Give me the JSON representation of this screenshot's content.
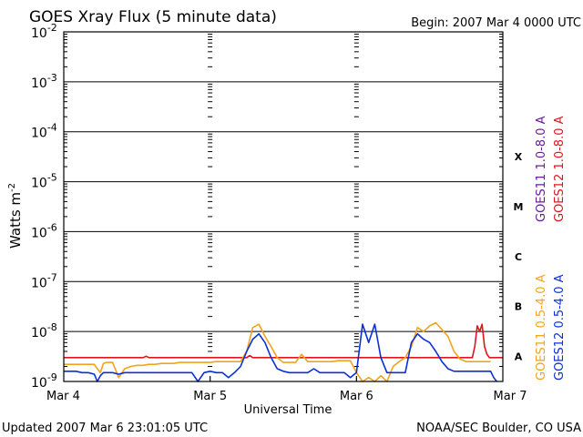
{
  "chart_data": {
    "type": "line",
    "title": "GOES Xray Flux (5 minute data)",
    "begin_label": "Begin:  2007 Mar 4 0000 UTC",
    "updated_label": "Updated 2007 Mar  6 23:01:05 UTC",
    "credit": "NOAA/SEC Boulder, CO USA",
    "xlabel": "Universal Time",
    "ylabel": "Watts m",
    "ylabel_superscript": "-2",
    "y_scale": "log",
    "ylim": [
      1e-09,
      0.01
    ],
    "xlim": [
      0,
      72
    ],
    "x_unit": "hours since 2007 Mar 4 0000 UTC",
    "grid": true,
    "x_ticks": [
      {
        "x": 0,
        "label": "Mar 4"
      },
      {
        "x": 24,
        "label": "Mar 5"
      },
      {
        "x": 48,
        "label": "Mar 6"
      },
      {
        "x": 72,
        "label": "Mar 7"
      }
    ],
    "y_ticks": [
      {
        "exp": -2,
        "base": "10",
        "sup": "-2"
      },
      {
        "exp": -3,
        "base": "10",
        "sup": "-3"
      },
      {
        "exp": -4,
        "base": "10",
        "sup": "-4"
      },
      {
        "exp": -5,
        "base": "10",
        "sup": "-5"
      },
      {
        "exp": -6,
        "base": "10",
        "sup": "-6"
      },
      {
        "exp": -7,
        "base": "10",
        "sup": "-7"
      },
      {
        "exp": -8,
        "base": "10",
        "sup": "-8"
      },
      {
        "exp": -9,
        "base": "10",
        "sup": "-9"
      }
    ],
    "flare_classes": [
      {
        "label": "X",
        "exp": -4.5
      },
      {
        "label": "M",
        "exp": -5.5
      },
      {
        "label": "C",
        "exp": -6.5
      },
      {
        "label": "B",
        "exp": -7.5
      },
      {
        "label": "A",
        "exp": -8.5
      }
    ],
    "legend": {
      "placement": "right",
      "long": [
        {
          "name": "GOES11 1.0-8.0 A",
          "color": "#6a1b9a"
        },
        {
          "name": "GOES12 1.0-8.0 A",
          "color": "#e0141e"
        }
      ],
      "short": [
        {
          "name": "GOES11 0.5-4.0 A",
          "color": "#f2a31b"
        },
        {
          "name": "GOES12 0.5-4.0 A",
          "color": "#0b2fd8"
        }
      ]
    },
    "series": [
      {
        "name": "GOES12 1.0-8.0 A",
        "color": "#e0141e",
        "x": [
          0,
          13,
          13.5,
          14,
          30,
          30.5,
          31,
          67,
          67.4,
          67.8,
          68.2,
          68.6,
          69,
          69.4,
          69.8,
          72
        ],
        "y": [
          3e-09,
          3e-09,
          3.2e-09,
          3e-09,
          3e-09,
          3.3e-09,
          3e-09,
          3e-09,
          5e-09,
          1.3e-08,
          1e-08,
          1.4e-08,
          5e-09,
          3.5e-09,
          3e-09,
          3e-09
        ]
      },
      {
        "name": "GOES11 0.5-4.0 A",
        "color": "#f2a31b",
        "x": [
          0,
          5,
          5.5,
          6,
          6.5,
          7,
          8,
          9,
          10,
          11,
          12,
          13,
          14,
          15,
          16,
          17,
          18,
          19,
          20,
          21,
          22,
          23,
          24,
          25,
          26,
          27,
          28,
          29,
          30,
          31,
          32,
          33,
          34,
          35,
          36,
          37,
          38,
          39,
          40,
          41,
          42,
          43,
          44,
          45,
          46,
          47,
          48,
          49,
          50,
          51,
          52,
          53,
          54,
          55,
          56,
          57,
          58,
          59,
          60,
          61,
          62,
          63,
          64,
          65,
          66,
          67,
          68,
          69,
          70
        ],
        "y": [
          2.2e-09,
          2.2e-09,
          1.8e-09,
          1.5e-09,
          2.3e-09,
          2.4e-09,
          2.4e-09,
          1.2e-09,
          1.8e-09,
          2e-09,
          2.1e-09,
          2.1e-09,
          2.2e-09,
          2.2e-09,
          2.3e-09,
          2.3e-09,
          2.3e-09,
          2.4e-09,
          2.4e-09,
          2.4e-09,
          2.4e-09,
          2.4e-09,
          2.4e-09,
          2.5e-09,
          2.5e-09,
          2.5e-09,
          2.5e-09,
          2.5e-09,
          4e-09,
          1.2e-08,
          1.4e-08,
          8e-09,
          5e-09,
          3e-09,
          2.4e-09,
          2.4e-09,
          2.4e-09,
          3.5e-09,
          2.5e-09,
          2.5e-09,
          2.5e-09,
          2.5e-09,
          2.5e-09,
          2.6e-09,
          2.6e-09,
          2.6e-09,
          1.5e-09,
          1e-09,
          1.2e-09,
          1e-09,
          1.3e-09,
          1e-09,
          2e-09,
          2.5e-09,
          3e-09,
          5e-09,
          1.2e-08,
          1e-08,
          1.3e-08,
          1.5e-08,
          1.1e-08,
          8e-09,
          4e-09,
          2.8e-09,
          2.5e-09,
          2.5e-09,
          2.5e-09,
          2.5e-09,
          2.5e-09
        ]
      },
      {
        "name": "GOES12 0.5-4.0 A",
        "color": "#0b2fd8",
        "x": [
          0,
          1,
          2,
          3,
          4,
          5,
          5.5,
          6,
          6.5,
          7,
          8,
          9,
          10,
          11,
          12,
          13,
          14,
          15,
          16,
          17,
          18,
          19,
          20,
          21,
          22,
          23,
          24,
          25,
          26,
          27,
          28,
          29,
          30,
          31,
          32,
          33,
          34,
          35,
          36,
          37,
          38,
          39,
          40,
          41,
          42,
          43,
          44,
          45,
          46,
          47,
          48,
          49,
          50,
          51,
          52,
          53,
          54,
          55,
          56,
          57,
          58,
          59,
          60,
          61,
          62,
          63,
          64,
          65,
          66,
          67,
          68,
          69,
          70,
          70.5,
          71
        ],
        "y": [
          1.6e-09,
          1.6e-09,
          1.6e-09,
          1.5e-09,
          1.5e-09,
          1.4e-09,
          1e-09,
          1.3e-09,
          1.5e-09,
          1.5e-09,
          1.5e-09,
          1.4e-09,
          1.5e-09,
          1.5e-09,
          1.5e-09,
          1.5e-09,
          1.5e-09,
          1.5e-09,
          1.5e-09,
          1.5e-09,
          1.5e-09,
          1.5e-09,
          1.5e-09,
          1.5e-09,
          1e-09,
          1.5e-09,
          1.6e-09,
          1.5e-09,
          1.5e-09,
          1.2e-09,
          1.5e-09,
          2e-09,
          4e-09,
          7e-09,
          9e-09,
          6e-09,
          3e-09,
          1.8e-09,
          1.6e-09,
          1.5e-09,
          1.5e-09,
          1.5e-09,
          1.5e-09,
          1.8e-09,
          1.5e-09,
          1.5e-09,
          1.5e-09,
          1.5e-09,
          1.5e-09,
          1.2e-09,
          1.5e-09,
          1.4e-08,
          6e-09,
          1.4e-08,
          3e-09,
          1.5e-09,
          1.5e-09,
          1.5e-09,
          1.5e-09,
          6e-09,
          9e-09,
          7e-09,
          6e-09,
          4e-09,
          2.5e-09,
          1.8e-09,
          1.6e-09,
          1.6e-09,
          1.6e-09,
          1.6e-09,
          1.6e-09,
          1.6e-09,
          1.6e-09,
          1.2e-09,
          1e-09
        ]
      }
    ]
  }
}
